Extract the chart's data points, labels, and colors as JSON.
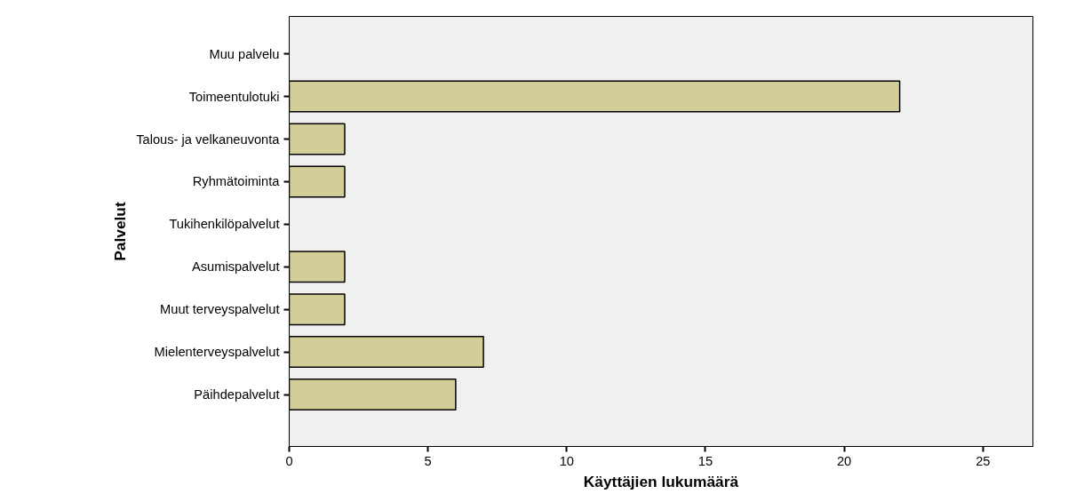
{
  "chart_data": {
    "type": "bar",
    "orientation": "horizontal",
    "xlabel": "Käyttäjien lukumäärä",
    "ylabel": "Palvelut",
    "categories": [
      "Muu palvelu",
      "Toimeentulotuki",
      "Talous- ja velkaneuvonta",
      "Ryhmätoiminta",
      "Tukihenkilöpalvelut",
      "Asumispalvelut",
      "Muut terveyspalvelut",
      "Mielenterveyspalvelut",
      "Päihdepalvelut"
    ],
    "values": [
      0,
      22,
      2,
      2,
      0,
      2,
      2,
      7,
      6
    ],
    "color": "#d3ce97",
    "xlim": [
      0,
      26.8
    ],
    "xticks": [
      0,
      5,
      10,
      15,
      20,
      25
    ],
    "grid": false
  }
}
